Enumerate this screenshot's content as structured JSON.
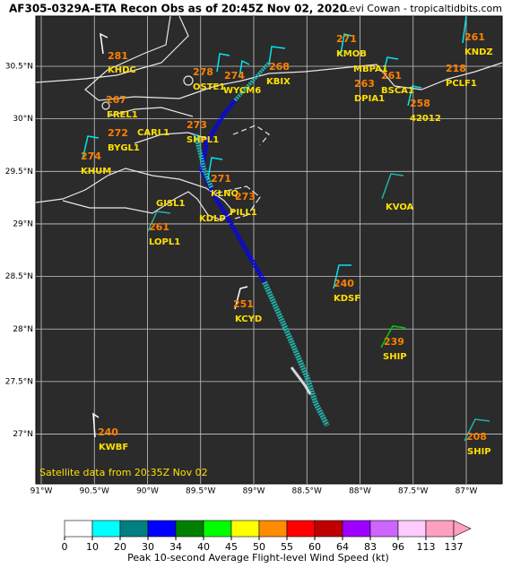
{
  "header": {
    "title": "AF305-0329A-ETA Recon Obs as of 20:45Z Nov 02, 2020",
    "credit": "Levi Cowan - tropicaltidbits.com"
  },
  "map": {
    "lon_ticks": [
      {
        "value": -91,
        "label": "91°W"
      },
      {
        "value": -90.5,
        "label": "90.5°W"
      },
      {
        "value": -90,
        "label": "90°W"
      },
      {
        "value": -89.5,
        "label": "89.5°W"
      },
      {
        "value": -89,
        "label": "89°W"
      },
      {
        "value": -88.5,
        "label": "88.5°W"
      },
      {
        "value": -88,
        "label": "88°W"
      },
      {
        "value": -87.5,
        "label": "87.5°W"
      },
      {
        "value": -87,
        "label": "87°W"
      }
    ],
    "lat_ticks": [
      {
        "value": 30.5,
        "label": "30.5°N"
      },
      {
        "value": 30,
        "label": "30°N"
      },
      {
        "value": 29.5,
        "label": "29.5°N"
      },
      {
        "value": 29,
        "label": "29°N"
      },
      {
        "value": 28.5,
        "label": "28.5°N"
      },
      {
        "value": 28,
        "label": "28°N"
      },
      {
        "value": 27.5,
        "label": "27.5°N"
      },
      {
        "value": 27,
        "label": "27°N"
      }
    ],
    "stations": [
      {
        "id": "KHDC",
        "value": 281
      },
      {
        "id": "OSTE1",
        "value": 278
      },
      {
        "id": "WYCM6",
        "value": 274
      },
      {
        "id": "KBIX",
        "value": 268
      },
      {
        "id": "KMOB",
        "value": 271
      },
      {
        "id": "MBPA1"
      },
      {
        "id": "DPIA1",
        "value": 263
      },
      {
        "id": "BSCA1",
        "value": 261
      },
      {
        "id": "KNDZ",
        "value": 261
      },
      {
        "id": "PCLF1",
        "value": 218
      },
      {
        "id": "42012",
        "value": 258
      },
      {
        "id": "FREL1",
        "value": 267
      },
      {
        "id": "BYGL1",
        "value": 272
      },
      {
        "id": "CARL1"
      },
      {
        "id": "SHPL1",
        "value": 273
      },
      {
        "id": "KHUM",
        "value": 274
      },
      {
        "id": "KLNQ",
        "value": 271
      },
      {
        "id": "PILL1",
        "value": 273
      },
      {
        "id": "KDLP"
      },
      {
        "id": "GISL1"
      },
      {
        "id": "LOPL1",
        "value": 261
      },
      {
        "id": "KVOA"
      },
      {
        "id": "KDSF",
        "value": 240
      },
      {
        "id": "KCYD",
        "value": 251
      },
      {
        "id": "SHIP",
        "value": 239
      },
      {
        "id": "SHIP",
        "value": 208
      },
      {
        "id": "KWBF",
        "value": 240
      }
    ],
    "footnote": "Satellite data from 20:35Z Nov 02"
  },
  "colorbar": {
    "ticks": [
      0,
      10,
      20,
      30,
      34,
      40,
      45,
      50,
      55,
      60,
      64,
      83,
      96,
      113,
      137
    ],
    "colors": [
      "#ffffff",
      "#00ffff",
      "#008080",
      "#0000ff",
      "#008000",
      "#00ff00",
      "#ffff00",
      "#ff8c00",
      "#ff0000",
      "#c00000",
      "#a000ff",
      "#cc66ff",
      "#ffccff",
      "#ffa0c0"
    ],
    "label": "Peak 10-second Average Flight-level Wind Speed (kt)"
  }
}
